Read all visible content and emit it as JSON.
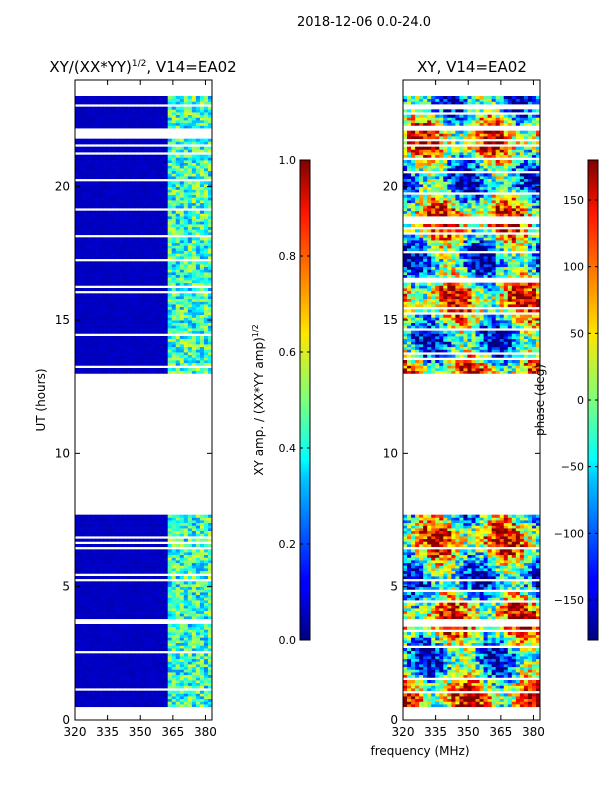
{
  "figure": {
    "suptitle": "2018-12-06 0.0-24.0",
    "xlabel": "frequency (MHz)"
  },
  "chart_data": [
    {
      "type": "heatmap",
      "title": "XY/(XX*YY)",
      "title_exponent": "1/2",
      "title_suffix": ", V14=EA02",
      "ylabel": "UT (hours)",
      "xlim": [
        320,
        383
      ],
      "ylim": [
        0,
        24
      ],
      "xticks": [
        "320",
        "335",
        "350",
        "365",
        "380"
      ],
      "yticks": [
        "0",
        "5",
        "10",
        "15",
        "20"
      ],
      "colorbar": {
        "label": "XY amp. / (XX*YY amp)",
        "label_exponent": "1/2",
        "range": [
          0.0,
          1.0
        ],
        "ticks": [
          "0.0",
          "0.2",
          "0.4",
          "0.6",
          "0.8",
          "1.0"
        ]
      },
      "data_bands_hours": [
        [
          0.5,
          5.5
        ],
        [
          5.5,
          7.7
        ],
        [
          13.0,
          23.4
        ]
      ],
      "background_value": 0.05,
      "elevated_freq_range_mhz": [
        362,
        383
      ]
    },
    {
      "type": "heatmap",
      "title": "XY, V14=EA02",
      "xlim": [
        320,
        383
      ],
      "ylim": [
        0,
        24
      ],
      "xticks": [
        "320",
        "335",
        "350",
        "365",
        "380"
      ],
      "yticks": [
        "0",
        "5",
        "10",
        "15",
        "20"
      ],
      "colorbar": {
        "label": "phase (deg)",
        "range": [
          -180,
          180
        ],
        "ticks": [
          "150",
          "100",
          "50",
          "0",
          "−50",
          "−100",
          "−150"
        ]
      },
      "data_bands_hours": [
        [
          0.5,
          7.7
        ],
        [
          13.0,
          23.4
        ]
      ]
    }
  ],
  "colors": {
    "axis": "#000000",
    "gap": "#ffffff",
    "low": "#00008f"
  }
}
